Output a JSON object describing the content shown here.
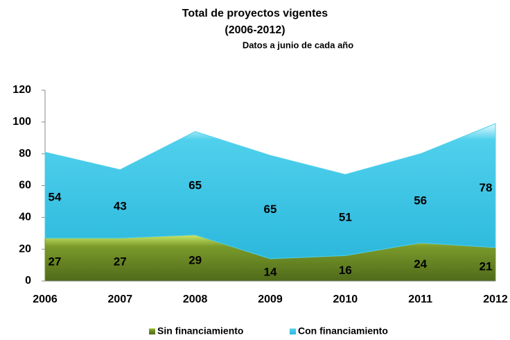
{
  "chart_data": {
    "type": "stacked_area",
    "title": "Total de proyectos  vigentes",
    "subtitle": "(2006-2012)",
    "annotation": "Datos a junio  de cada año",
    "categories": [
      "2006",
      "2007",
      "2008",
      "2009",
      "2010",
      "2011",
      "2012"
    ],
    "series": [
      {
        "name": "Sin financiamiento",
        "color": "#7a9a2a",
        "values": [
          27,
          27,
          29,
          14,
          16,
          24,
          21
        ]
      },
      {
        "name": "Con financiamiento",
        "color": "#4fd0ec",
        "values": [
          54,
          43,
          65,
          65,
          51,
          56,
          78
        ]
      }
    ],
    "ylim": [
      0,
      120
    ],
    "yticks": [
      0,
      20,
      40,
      60,
      80,
      100,
      120
    ],
    "legend": "bottom"
  }
}
